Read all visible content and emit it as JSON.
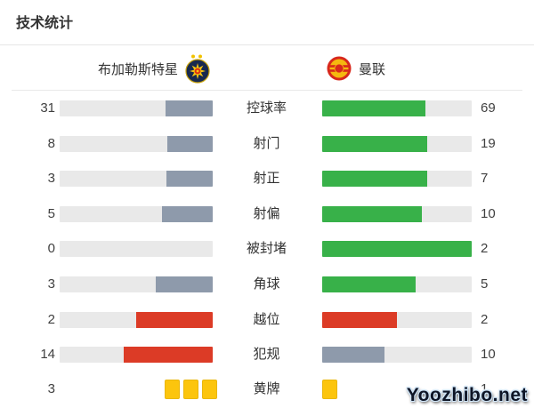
{
  "header": {
    "title": "技术统计"
  },
  "teams": {
    "home": {
      "name": "布加勒斯特星",
      "badge_icon": "steaua-star-crest-icon"
    },
    "away": {
      "name": "曼联",
      "badge_icon": "man-utd-crest-icon"
    }
  },
  "colors": {
    "green": "#38b149",
    "grey": "#8e9aab",
    "red": "#dc3b26",
    "yellow": "#fcc50d",
    "track": "#e9e9e9",
    "text": "#404040",
    "divider": "#e6e6e6"
  },
  "chart_data": {
    "type": "bar",
    "orientation": "horizontal-paired",
    "title": "技术统计",
    "categories": [
      "控球率",
      "射门",
      "射正",
      "射偏",
      "被封堵",
      "角球",
      "越位",
      "犯规",
      "黄牌"
    ],
    "series": [
      {
        "name": "布加勒斯特星",
        "values": [
          31,
          8,
          3,
          5,
          0,
          3,
          2,
          14,
          3
        ]
      },
      {
        "name": "曼联",
        "values": [
          69,
          19,
          7,
          10,
          2,
          5,
          2,
          10,
          1
        ]
      }
    ],
    "home_bar_colors": [
      "grey",
      "grey",
      "grey",
      "grey",
      "grey",
      "grey",
      "red",
      "red",
      "yellow"
    ],
    "away_bar_colors": [
      "green",
      "green",
      "green",
      "green",
      "green",
      "green",
      "red",
      "grey",
      "yellow"
    ],
    "row_types": [
      "bar",
      "bar",
      "bar",
      "bar",
      "bar",
      "bar",
      "bar",
      "bar",
      "cards"
    ],
    "bar_length_rule": "fill % = value / (home value + away value)",
    "legend_position": "top",
    "grid": false
  },
  "watermark": {
    "text": "Yoozhibo.net"
  }
}
